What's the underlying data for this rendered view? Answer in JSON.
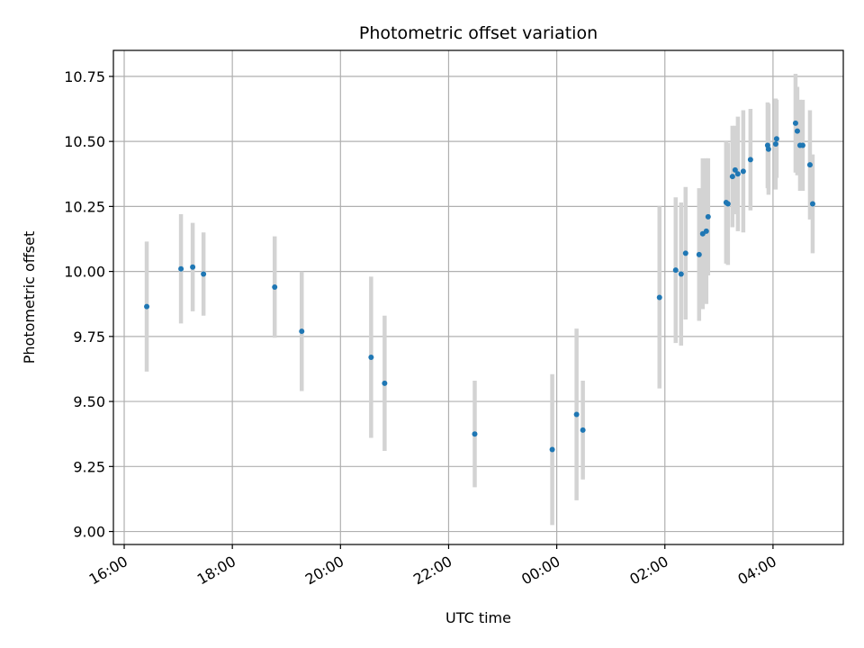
{
  "colors": {
    "point": "#1f77b4",
    "errorbar": "#d3d3d3",
    "grid": "#b0b0b0",
    "axes": "#000000",
    "background": "#ffffff"
  },
  "chart_data": {
    "type": "scatter",
    "title": "Photometric offset variation",
    "xlabel": "UTC time",
    "ylabel": "Photometric offset",
    "grid": true,
    "x_axis_kind": "time",
    "xlim": [
      "2000-01-01 15:48",
      "2000-01-02 05:18"
    ],
    "ylim": [
      8.95,
      10.85
    ],
    "x_ticks": [
      {
        "time": "2000-01-01 16:00",
        "label": "16:00"
      },
      {
        "time": "2000-01-01 18:00",
        "label": "18:00"
      },
      {
        "time": "2000-01-01 20:00",
        "label": "20:00"
      },
      {
        "time": "2000-01-01 22:00",
        "label": "22:00"
      },
      {
        "time": "2000-01-02 00:00",
        "label": "00:00"
      },
      {
        "time": "2000-01-02 02:00",
        "label": "02:00"
      },
      {
        "time": "2000-01-02 04:00",
        "label": "04:00"
      }
    ],
    "y_ticks": [
      {
        "value": 9.0,
        "label": "9.00"
      },
      {
        "value": 9.25,
        "label": "9.25"
      },
      {
        "value": 9.5,
        "label": "9.50"
      },
      {
        "value": 9.75,
        "label": "9.75"
      },
      {
        "value": 10.0,
        "label": "10.00"
      },
      {
        "value": 10.25,
        "label": "10.25"
      },
      {
        "value": 10.5,
        "label": "10.50"
      },
      {
        "value": 10.75,
        "label": "10.75"
      }
    ],
    "points": [
      {
        "time": "2000-01-01 16:25",
        "y": 9.865,
        "err": 0.25
      },
      {
        "time": "2000-01-01 17:03",
        "y": 10.01,
        "err": 0.21
      },
      {
        "time": "2000-01-01 17:16",
        "y": 10.017,
        "err": 0.17
      },
      {
        "time": "2000-01-01 17:28",
        "y": 9.99,
        "err": 0.16
      },
      {
        "time": "2000-01-01 18:47",
        "y": 9.94,
        "err": 0.195
      },
      {
        "time": "2000-01-01 19:17",
        "y": 9.77,
        "err": 0.23
      },
      {
        "time": "2000-01-01 20:34",
        "y": 9.67,
        "err": 0.31
      },
      {
        "time": "2000-01-01 20:49",
        "y": 9.57,
        "err": 0.26
      },
      {
        "time": "2000-01-01 22:29",
        "y": 9.375,
        "err": 0.205
      },
      {
        "time": "2000-01-01 23:55",
        "y": 9.315,
        "err": 0.29
      },
      {
        "time": "2000-01-02 00:22",
        "y": 9.45,
        "err": 0.33
      },
      {
        "time": "2000-01-02 00:29",
        "y": 9.39,
        "err": 0.19
      },
      {
        "time": "2000-01-02 01:54",
        "y": 9.9,
        "err": 0.35
      },
      {
        "time": "2000-01-02 02:12",
        "y": 10.005,
        "err": 0.28
      },
      {
        "time": "2000-01-02 02:18",
        "y": 9.99,
        "err": 0.275
      },
      {
        "time": "2000-01-02 02:23",
        "y": 10.07,
        "err": 0.255
      },
      {
        "time": "2000-01-02 02:38",
        "y": 10.065,
        "err": 0.255
      },
      {
        "time": "2000-01-02 02:42",
        "y": 10.145,
        "err": 0.29
      },
      {
        "time": "2000-01-02 02:46",
        "y": 10.155,
        "err": 0.28
      },
      {
        "time": "2000-01-02 02:48",
        "y": 10.21,
        "err": 0.225
      },
      {
        "time": "2000-01-02 03:08",
        "y": 10.265,
        "err": 0.235
      },
      {
        "time": "2000-01-02 03:10",
        "y": 10.26,
        "err": 0.235
      },
      {
        "time": "2000-01-02 03:15",
        "y": 10.365,
        "err": 0.195
      },
      {
        "time": "2000-01-02 03:18",
        "y": 10.39,
        "err": 0.17
      },
      {
        "time": "2000-01-02 03:21",
        "y": 10.375,
        "err": 0.22
      },
      {
        "time": "2000-01-02 03:27",
        "y": 10.385,
        "err": 0.235
      },
      {
        "time": "2000-01-02 03:35",
        "y": 10.43,
        "err": 0.195
      },
      {
        "time": "2000-01-02 03:54",
        "y": 10.485,
        "err": 0.165
      },
      {
        "time": "2000-01-02 03:55",
        "y": 10.47,
        "err": 0.175
      },
      {
        "time": "2000-01-02 04:03",
        "y": 10.49,
        "err": 0.175
      },
      {
        "time": "2000-01-02 04:04",
        "y": 10.51,
        "err": 0.15
      },
      {
        "time": "2000-01-02 04:25",
        "y": 10.57,
        "err": 0.19
      },
      {
        "time": "2000-01-02 04:27",
        "y": 10.54,
        "err": 0.17
      },
      {
        "time": "2000-01-02 04:30",
        "y": 10.485,
        "err": 0.175
      },
      {
        "time": "2000-01-02 04:33",
        "y": 10.485,
        "err": 0.175
      },
      {
        "time": "2000-01-02 04:41",
        "y": 10.41,
        "err": 0.21
      },
      {
        "time": "2000-01-02 04:44",
        "y": 10.26,
        "err": 0.19
      }
    ]
  }
}
